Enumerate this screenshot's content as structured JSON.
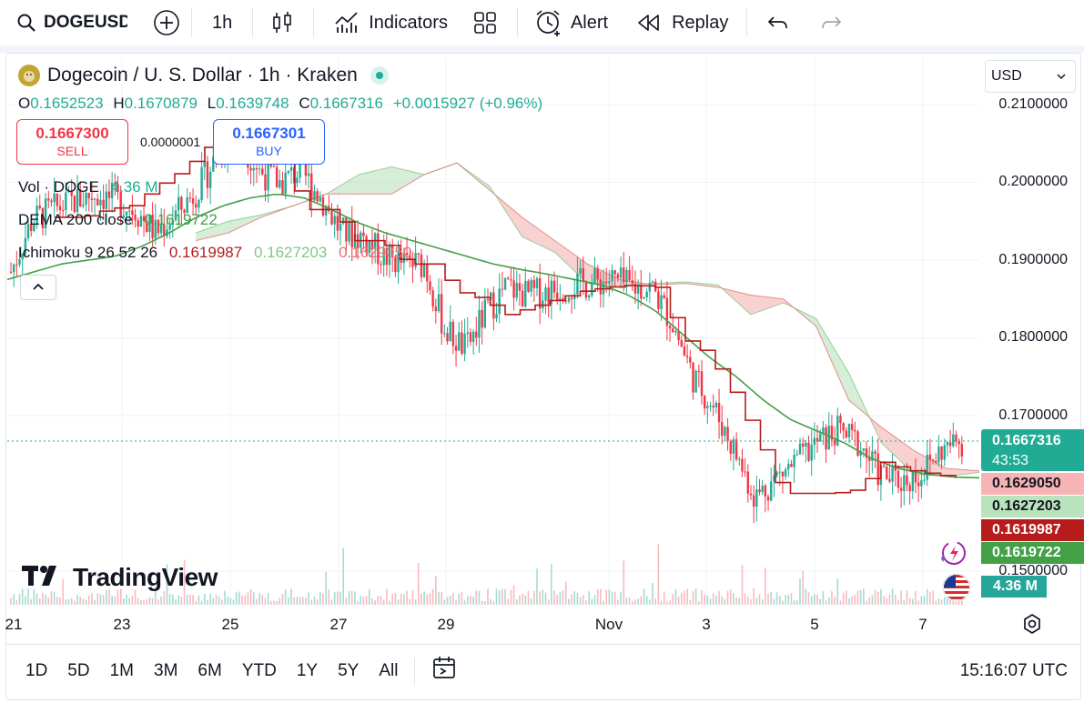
{
  "toolbar": {
    "symbol": "DOGEUSD",
    "interval": "1h",
    "indicators_label": "Indicators",
    "alert_label": "Alert",
    "replay_label": "Replay"
  },
  "header": {
    "title": "Dogecoin / U. S. Dollar · 1h · Kraken",
    "currency": "USD"
  },
  "ohlc": {
    "o_key": "O",
    "o": "0.1652523",
    "h_key": "H",
    "h": "0.1670879",
    "l_key": "L",
    "l": "0.1639748",
    "c_key": "C",
    "c": "0.1667316",
    "change": "+0.0015927 (+0.96%)"
  },
  "trade": {
    "sell_price": "0.1667300",
    "sell_label": "SELL",
    "spread": "0.0000001",
    "buy_price": "0.1667301",
    "buy_label": "BUY"
  },
  "indicators": {
    "vol_label": "Vol · DOGE",
    "vol_value": "4.36 M",
    "dema_label": "DEMA 200 close",
    "dema_value": "0.1619722",
    "ichimoku_label": "Ichimoku 9 26 52 26",
    "ichi_v1": "0.1619987",
    "ichi_v2": "0.1627203",
    "ichi_v3": "0.1629050"
  },
  "price_axis": [
    "0.2100000",
    "0.2000000",
    "0.1900000",
    "0.1800000",
    "0.1700000",
    "0.1500000"
  ],
  "tags": {
    "last_price": "0.1667316",
    "countdown": "43:53",
    "span_b": "0.1629050",
    "span_a": "0.1627203",
    "base": "0.1619987",
    "dema": "0.1619722",
    "volume": "4.36 M"
  },
  "time_axis": [
    "21",
    "23",
    "25",
    "27",
    "29",
    "Nov",
    "3",
    "5",
    "7"
  ],
  "ranges": [
    "1D",
    "5D",
    "1M",
    "3M",
    "6M",
    "YTD",
    "1Y",
    "5Y",
    "All"
  ],
  "clock": "15:16:07 UTC",
  "watermark": "TradingView",
  "colors": {
    "up": "#22ab94",
    "down": "#f23645",
    "dema": "#43a047",
    "base_line": "#b71c1c",
    "cloud_up": "#a5d6a7",
    "cloud_down": "#ef9a9a",
    "buy_blue": "#2962ff",
    "sell_red": "#f23645"
  },
  "chart_data": {
    "type": "candlestick",
    "symbol": "DOGEUSD",
    "interval": "1h",
    "y_ticks": [
      0.15,
      0.17,
      0.18,
      0.19,
      0.2,
      0.21
    ],
    "x_ticks": [
      "21",
      "23",
      "25",
      "27",
      "29",
      "Nov",
      "3",
      "5",
      "7"
    ],
    "close_path": [
      0.1885,
      0.195,
      0.1965,
      0.1975,
      0.1985,
      0.1978,
      0.1965,
      0.1935,
      0.196,
      0.199,
      0.2035,
      0.206,
      0.2015,
      0.2,
      0.2015,
      0.198,
      0.1935,
      0.193,
      0.1905,
      0.1895,
      0.1895,
      0.181,
      0.1785,
      0.1835,
      0.1865,
      0.1855,
      0.186,
      0.1868,
      0.187,
      0.1875,
      0.1865,
      0.1865,
      0.182,
      0.175,
      0.171,
      0.1655,
      0.1595,
      0.162,
      0.164,
      0.1665,
      0.168,
      0.1665,
      0.1625,
      0.1615,
      0.1625,
      0.1655,
      0.1667
    ],
    "dema_path": [
      0.1875,
      0.1885,
      0.1895,
      0.19,
      0.1905,
      0.1918,
      0.1935,
      0.1955,
      0.197,
      0.198,
      0.1985,
      0.198,
      0.1965,
      0.1948,
      0.1935,
      0.1925,
      0.1915,
      0.1905,
      0.1895,
      0.1888,
      0.1882,
      0.1875,
      0.1868,
      0.1855,
      0.1835,
      0.1805,
      0.1775,
      0.175,
      0.172,
      0.1695,
      0.168,
      0.1665,
      0.1645,
      0.1632,
      0.1625,
      0.1621,
      0.162
    ],
    "base_path": [
      0.1955,
      0.1955,
      0.1965,
      0.197,
      0.1995,
      0.2015,
      0.2045,
      0.2045,
      0.203,
      0.2025,
      0.1965,
      0.1965,
      0.1925,
      0.1925,
      0.1895,
      0.1895,
      0.186,
      0.185,
      0.183,
      0.184,
      0.185,
      0.186,
      0.1865,
      0.1868,
      0.1865,
      0.18,
      0.178,
      0.173,
      0.167,
      0.16,
      0.16,
      0.16,
      0.1605,
      0.164,
      0.163,
      0.1625,
      0.162
    ],
    "span_a_path": [
      0.1935,
      0.195,
      0.1958,
      0.197,
      0.1985,
      0.201,
      0.202,
      0.201,
      0.2025,
      0.1995,
      0.193,
      0.191,
      0.187,
      0.1865,
      0.187,
      0.1872,
      0.1868,
      0.183,
      0.1845,
      0.1825,
      0.1755,
      0.1665,
      0.1625,
      0.1622,
      0.1627
    ],
    "span_b_path": [
      0.1925,
      0.1935,
      0.1955,
      0.197,
      0.1985,
      0.1985,
      0.1985,
      0.201,
      0.2025,
      0.199,
      0.1955,
      0.1925,
      0.1895,
      0.1875,
      0.1868,
      0.187,
      0.1865,
      0.1855,
      0.185,
      0.1815,
      0.172,
      0.1685,
      0.1655,
      0.1632,
      0.1629
    ]
  }
}
